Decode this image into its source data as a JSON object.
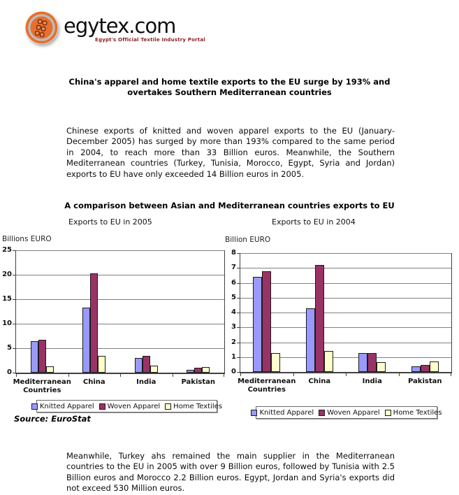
{
  "header": {
    "logo_text": "egytex.com",
    "tagline": "Egypt's Official Textile Industry Portal",
    "brand_orange": "#e86f2c"
  },
  "article": {
    "headline_line1": "China's apparel and home textile exports to the EU surge by 193% and",
    "headline_line2": "overtakes Southern Mediterranean countries",
    "paragraph1": "Chinese exports of knitted and woven apparel exports to the EU (January-December 2005) has surged by more than 193% compared to the same period in 2004, to reach more than 33 Billion euros. Meanwhile, the Southern Mediterranean countries (Turkey, Tunisia, Morocco, Egypt, Syria and Jordan) exports to EU have only exceeded 14 Billion euros in 2005.",
    "chart_section_title": "A comparison between Asian and Mediterranean countries exports to EU",
    "source_note": "Source: EuroStat",
    "paragraph2": "Meanwhile, Turkey ahs remained the main supplier in the Mediterranean countries to the EU in 2005 with over 9 Billion euros, followed by Tunisia with 2.5 Billion euros and Morocco 2.2 Billion euros. Egypt, Jordan and Syria's exports did not exceed 530 Million euros."
  },
  "chart_data": [
    {
      "type": "bar",
      "title": "Exports to EU in 2005",
      "ylabel": "Billions EURO",
      "xlabel": "",
      "categories": [
        "Mediterranean Countries",
        "China",
        "India",
        "Pakistan"
      ],
      "series": [
        {
          "name": "Knitted Apparel",
          "color": "#9999FF",
          "values": [
            6.5,
            13.3,
            3.0,
            0.6
          ]
        },
        {
          "name": "Woven Apparel",
          "color": "#993366",
          "values": [
            6.7,
            20.3,
            3.5,
            1.0
          ]
        },
        {
          "name": "Home Textiles",
          "color": "#FFFFCC",
          "values": [
            1.3,
            3.5,
            1.5,
            1.2
          ]
        }
      ],
      "ylim": [
        0,
        25
      ],
      "ystep": 5,
      "yticks": [
        0,
        5,
        10,
        15,
        20,
        25
      ],
      "grid": true,
      "legend_position": "bottom",
      "grid_color": "#808080",
      "axis_color": "#404040"
    },
    {
      "type": "bar",
      "title": "Exports to EU in 2004",
      "ylabel": "Billion EURO",
      "xlabel": "",
      "categories": [
        "Mediterranean Countries",
        "China",
        "India",
        "Pakistan"
      ],
      "series": [
        {
          "name": "Knitted Apparel",
          "color": "#9999FF",
          "values": [
            6.4,
            4.3,
            1.25,
            0.4
          ]
        },
        {
          "name": "Woven Apparel",
          "color": "#993366",
          "values": [
            6.8,
            7.2,
            1.25,
            0.45
          ]
        },
        {
          "name": "Home Textiles",
          "color": "#FFFFCC",
          "values": [
            1.25,
            1.4,
            0.65,
            0.7
          ]
        }
      ],
      "ylim": [
        0,
        8
      ],
      "ystep": 1,
      "yticks": [
        0,
        1,
        2,
        3,
        4,
        5,
        6,
        7,
        8
      ],
      "grid": true,
      "legend_position": "bottom",
      "grid_color": "#808080",
      "axis_color": "#404040"
    }
  ]
}
